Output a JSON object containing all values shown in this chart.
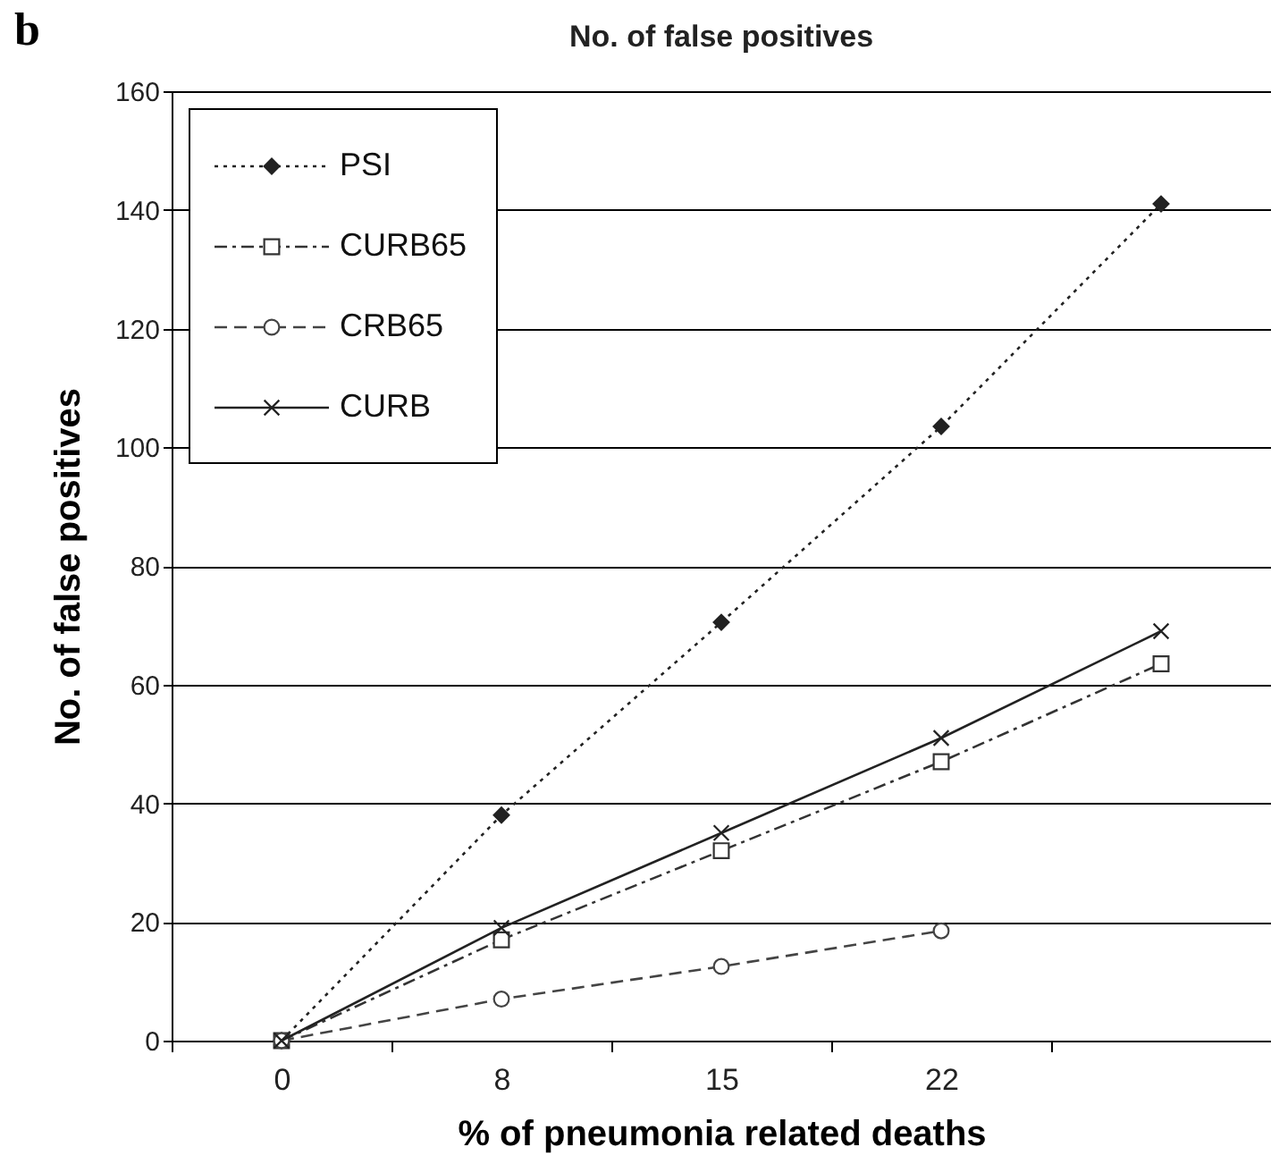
{
  "chart_data": {
    "type": "line",
    "title": "No. of false positives",
    "xlabel": "% of pneumonia related deaths",
    "ylabel": "No. of false positives",
    "annotations": [
      "b"
    ],
    "categories": [
      "0",
      "8",
      "15",
      "22",
      null
    ],
    "series": [
      {
        "name": "PSI",
        "color": "#222222",
        "marker": "diamond",
        "line_style": "dotted",
        "values": [
          0,
          38,
          70.5,
          103.5,
          141
        ]
      },
      {
        "name": "CURB65",
        "color": "#333333",
        "marker": "square",
        "line_style": "dashdot",
        "values": [
          0,
          17,
          32,
          47,
          63.5
        ]
      },
      {
        "name": "CRB65",
        "color": "#444444",
        "marker": "circle",
        "line_style": "dashed",
        "values": [
          0,
          7,
          12.5,
          18.5,
          null
        ]
      },
      {
        "name": "CURB",
        "color": "#222222",
        "marker": "cross",
        "line_style": "solid",
        "values": [
          0,
          19,
          35,
          51,
          69
        ]
      }
    ],
    "ylim": [
      0,
      160
    ],
    "yticks": [
      0,
      20,
      40,
      60,
      80,
      100,
      120,
      140,
      160
    ],
    "grid": "y",
    "legend": "top left"
  }
}
